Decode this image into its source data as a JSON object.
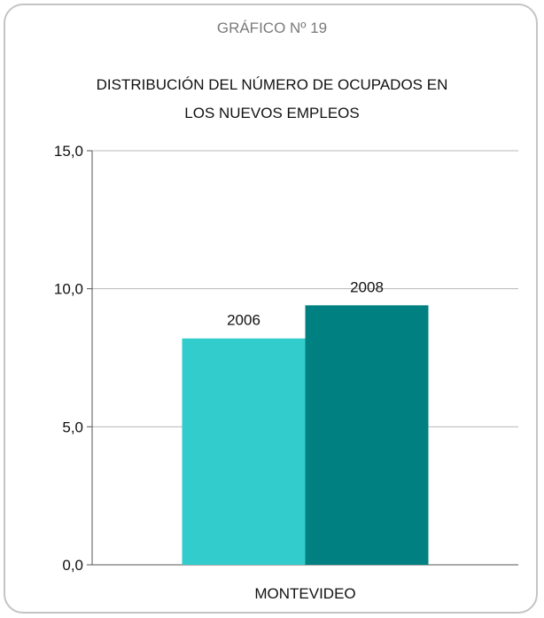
{
  "header": {
    "kicker": "GRÁFICO Nº 19"
  },
  "chart_data": {
    "type": "bar",
    "title": "DISTRIBUCIÓN DEL NÚMERO DE OCUPADOS EN LOS NUEVOS EMPLEOS",
    "categories": [
      "MONTEVIDEO"
    ],
    "series": [
      {
        "name": "2006",
        "values": [
          8.2
        ],
        "color": "#33cccc",
        "label": "2006"
      },
      {
        "name": "2008",
        "values": [
          9.4
        ],
        "color": "#008080",
        "label": "2008"
      }
    ],
    "ylim": [
      0,
      15
    ],
    "yticks": [
      "0,0",
      "5,0",
      "10,0",
      "15,0"
    ],
    "ytick_values": [
      0,
      5,
      10,
      15
    ],
    "grid": true,
    "legend": "none"
  }
}
